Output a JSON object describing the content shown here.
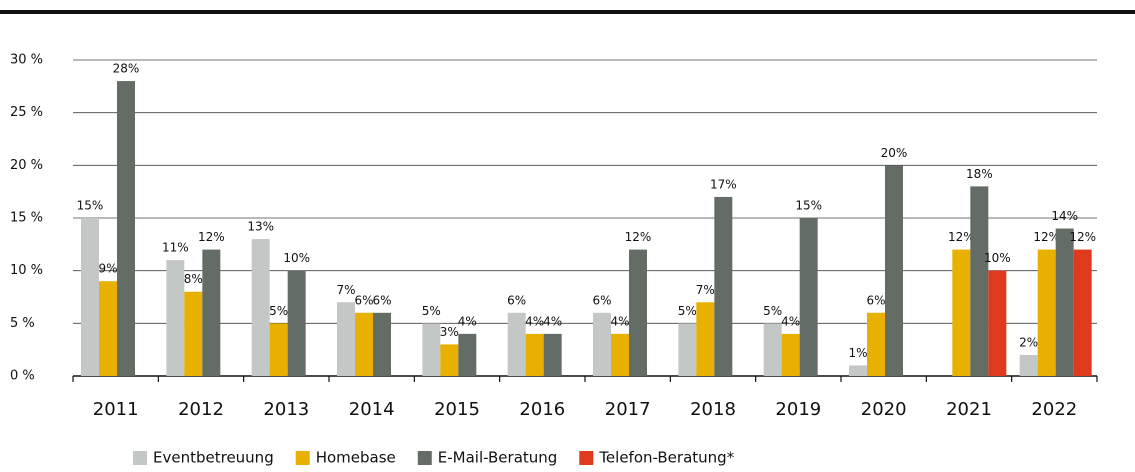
{
  "chart_data": {
    "type": "bar",
    "categories": [
      "2011",
      "2012",
      "2013",
      "2014",
      "2015",
      "2016",
      "2017",
      "2018",
      "2019",
      "2020",
      "2021",
      "2022"
    ],
    "series": [
      {
        "name": "Eventbetreuung",
        "color": "#c3c7c5",
        "values": [
          15,
          11,
          13,
          7,
          5,
          6,
          6,
          5,
          5,
          1,
          null,
          2
        ],
        "value_labels": [
          "15%",
          "11%",
          "13%",
          "7%",
          "5%",
          "6%",
          "6%",
          "5%",
          "5%",
          "1%",
          null,
          "2%"
        ]
      },
      {
        "name": "Homebase",
        "color": "#e8b000",
        "values": [
          9,
          8,
          5,
          6,
          3,
          4,
          4,
          7,
          4,
          6,
          12,
          12
        ],
        "value_labels": [
          "9%",
          "8%",
          "5%",
          "6%",
          "3%",
          "4%",
          "4%",
          "7%",
          "4%",
          "6%",
          "12%",
          "12%"
        ]
      },
      {
        "name": "E-Mail-Beratung",
        "color": "#646c66",
        "values": [
          28,
          12,
          10,
          6,
          4,
          4,
          12,
          17,
          15,
          20,
          18,
          14
        ],
        "value_labels": [
          "28%",
          "12%",
          "10%",
          "6%",
          "4%",
          "4%",
          "12%",
          "17%",
          "15%",
          "20%",
          "18%",
          "14%"
        ]
      },
      {
        "name": "Telefon-Beratung*",
        "color": "#e03a1e",
        "values": [
          null,
          null,
          null,
          null,
          null,
          null,
          null,
          null,
          null,
          null,
          10,
          12
        ],
        "value_labels": [
          null,
          null,
          null,
          null,
          null,
          null,
          null,
          null,
          null,
          null,
          "10%",
          "12%"
        ]
      }
    ],
    "ylim": [
      0,
      30
    ],
    "yticks": [
      {
        "value": 0,
        "label": "0 %"
      },
      {
        "value": 5,
        "label": "5 %"
      },
      {
        "value": 10,
        "label": "10 %"
      },
      {
        "value": 15,
        "label": "15 %"
      },
      {
        "value": 20,
        "label": "20 %"
      },
      {
        "value": 25,
        "label": "25 %"
      },
      {
        "value": 30,
        "label": "30 %"
      }
    ],
    "grid": true
  }
}
